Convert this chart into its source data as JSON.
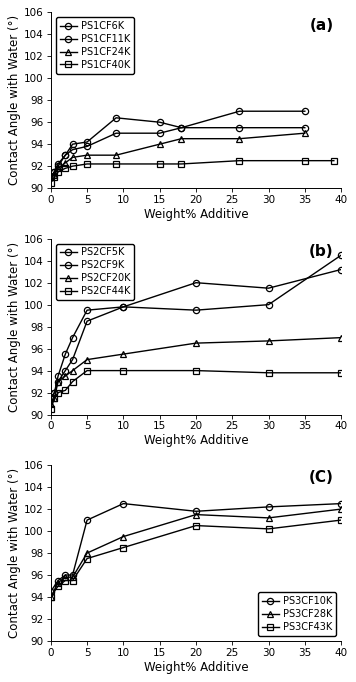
{
  "panel_a": {
    "label": "(a)",
    "ylim": [
      90,
      106
    ],
    "yticks": [
      90,
      92,
      94,
      96,
      98,
      100,
      102,
      104,
      106
    ],
    "xlim": [
      0,
      40
    ],
    "xticks": [
      0,
      5,
      10,
      15,
      20,
      25,
      30,
      35,
      40
    ],
    "series": [
      {
        "label": "PS1CF6K",
        "marker": "o",
        "fillstyle": "none",
        "x": [
          0,
          0.5,
          1,
          2,
          3,
          5,
          9,
          15,
          18,
          26,
          35
        ],
        "y": [
          91.0,
          91.5,
          92.0,
          93.0,
          94.0,
          94.2,
          96.4,
          96.0,
          95.5,
          97.0,
          97.0
        ]
      },
      {
        "label": "PS1CF11K",
        "marker": "o",
        "fillstyle": "none",
        "x": [
          0,
          0.5,
          1,
          2,
          3,
          5,
          9,
          15,
          18,
          26,
          35
        ],
        "y": [
          91.0,
          91.5,
          92.2,
          93.0,
          93.5,
          93.8,
          95.0,
          95.0,
          95.5,
          95.5,
          95.5
        ]
      },
      {
        "label": "PS1CF24K",
        "marker": "^",
        "fillstyle": "none",
        "x": [
          0,
          0.5,
          1,
          2,
          3,
          5,
          9,
          15,
          18,
          26,
          35
        ],
        "y": [
          91.0,
          91.2,
          91.8,
          92.3,
          92.8,
          93.0,
          93.0,
          94.0,
          94.5,
          94.5,
          95.0
        ]
      },
      {
        "label": "PS1CF40K",
        "marker": "s",
        "fillstyle": "none",
        "x": [
          0,
          0.5,
          1,
          2,
          3,
          5,
          9,
          15,
          18,
          26,
          35,
          39
        ],
        "y": [
          90.5,
          91.0,
          91.5,
          91.8,
          92.0,
          92.2,
          92.2,
          92.2,
          92.2,
          92.5,
          92.5,
          92.5
        ]
      }
    ],
    "legend_loc": "upper left",
    "legend_bbox": null
  },
  "panel_b": {
    "label": "(b)",
    "ylim": [
      90,
      106
    ],
    "yticks": [
      90,
      92,
      94,
      96,
      98,
      100,
      102,
      104,
      106
    ],
    "xlim": [
      0,
      40
    ],
    "xticks": [
      0,
      5,
      10,
      15,
      20,
      25,
      30,
      35,
      40
    ],
    "series": [
      {
        "label": "PS2CF5K",
        "marker": "o",
        "fillstyle": "none",
        "x": [
          0,
          0.5,
          1,
          2,
          3,
          5,
          10,
          20,
          30,
          40
        ],
        "y": [
          91.5,
          92.0,
          93.5,
          95.5,
          97.0,
          99.5,
          99.8,
          102.0,
          101.5,
          103.2
        ]
      },
      {
        "label": "PS2CF9K",
        "marker": "o",
        "fillstyle": "none",
        "x": [
          0,
          0.5,
          1,
          2,
          3,
          5,
          10,
          20,
          30,
          40
        ],
        "y": [
          91.5,
          92.0,
          93.0,
          94.0,
          95.0,
          98.5,
          99.8,
          99.5,
          100.0,
          104.5
        ]
      },
      {
        "label": "PS2CF20K",
        "marker": "^",
        "fillstyle": "none",
        "x": [
          0,
          0.5,
          1,
          2,
          3,
          5,
          10,
          20,
          30,
          40
        ],
        "y": [
          91.0,
          91.5,
          93.0,
          93.5,
          94.0,
          95.0,
          95.5,
          96.5,
          96.7,
          97.0
        ]
      },
      {
        "label": "PS2CF44K",
        "marker": "s",
        "fillstyle": "none",
        "x": [
          0,
          0.5,
          1,
          2,
          3,
          5,
          10,
          20,
          30,
          40
        ],
        "y": [
          90.5,
          91.5,
          92.0,
          92.2,
          93.0,
          94.0,
          94.0,
          94.0,
          93.8,
          93.8
        ]
      }
    ],
    "legend_loc": "upper left",
    "legend_bbox": null
  },
  "panel_c": {
    "label": "(C)",
    "ylim": [
      90,
      106
    ],
    "yticks": [
      90,
      92,
      94,
      96,
      98,
      100,
      102,
      104,
      106
    ],
    "xlim": [
      0,
      40
    ],
    "xticks": [
      0,
      5,
      10,
      15,
      20,
      25,
      30,
      35,
      40
    ],
    "series": [
      {
        "label": "PS3CF10K",
        "marker": "o",
        "fillstyle": "none",
        "x": [
          0,
          1,
          2,
          3,
          5,
          10,
          20,
          30,
          40
        ],
        "y": [
          94.5,
          95.5,
          96.0,
          96.0,
          101.0,
          102.5,
          101.8,
          102.2,
          102.5
        ]
      },
      {
        "label": "PS3CF28K",
        "marker": "^",
        "fillstyle": "none",
        "x": [
          0,
          1,
          2,
          3,
          5,
          10,
          20,
          30,
          40
        ],
        "y": [
          94.0,
          95.3,
          95.8,
          95.8,
          98.0,
          99.5,
          101.5,
          101.2,
          102.0
        ]
      },
      {
        "label": "PS3CF43K",
        "marker": "s",
        "fillstyle": "none",
        "x": [
          0,
          1,
          2,
          3,
          5,
          10,
          20,
          30,
          40
        ],
        "y": [
          94.0,
          95.0,
          95.5,
          95.5,
          97.5,
          98.5,
          100.5,
          100.2,
          101.0
        ]
      }
    ],
    "legend_loc": "lower right",
    "legend_bbox": null
  },
  "ylabel": "Contact Angle with Water (°)",
  "xlabel": "Weight% Additive",
  "linecolor": "#000000",
  "legend_fontsize": 7.0,
  "tick_fontsize": 7.5,
  "label_fontsize": 8.5,
  "panel_label_fontsize": 11
}
